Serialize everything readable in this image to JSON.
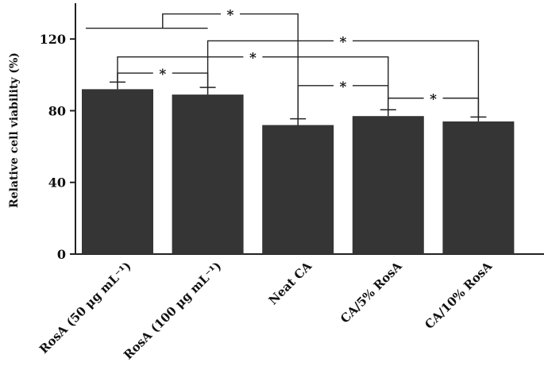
{
  "chart_data": {
    "type": "bar",
    "ylabel": "Relative cell viability (%)",
    "ylim": [
      0,
      140
    ],
    "yticks": [
      0,
      40,
      80,
      120
    ],
    "categories": [
      "RosA (50 μg mL⁻¹)",
      "RosA (100 μg mL⁻¹)",
      "Neat CA",
      "CA/5% RosA",
      "CA/10% RosA"
    ],
    "values": [
      92,
      89,
      72,
      77,
      74
    ],
    "errors": [
      4,
      4,
      3.5,
      3.5,
      2.5
    ],
    "bar_color": "#353535",
    "grid": false,
    "significance": [
      {
        "from": 0,
        "to": 1,
        "y": 101,
        "label": "*"
      },
      {
        "from": 0,
        "to": 3,
        "y": 110,
        "label": "*"
      },
      {
        "from": 1,
        "to": 4,
        "y": 119,
        "label": "*"
      },
      {
        "from": "0-1",
        "to": 2,
        "y": 134,
        "label": "*"
      },
      {
        "from": 2,
        "to": 3,
        "y": 94,
        "label": "*"
      },
      {
        "from": 3,
        "to": 4,
        "y": 87,
        "label": "*"
      }
    ]
  }
}
